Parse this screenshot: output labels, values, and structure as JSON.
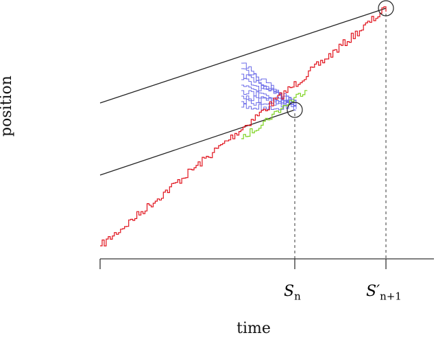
{
  "axes": {
    "ylabel": "position",
    "xlabel": "time"
  },
  "ticks": {
    "sn_base": "S",
    "sn_sub": "n",
    "sn1_base": "S′",
    "sn1_sub": "n+1"
  },
  "colors": {
    "main_path": "#e0101a",
    "sample_paths": "#6a6ae8",
    "selected_path": "#7ed321",
    "lines": "#222222"
  }
}
